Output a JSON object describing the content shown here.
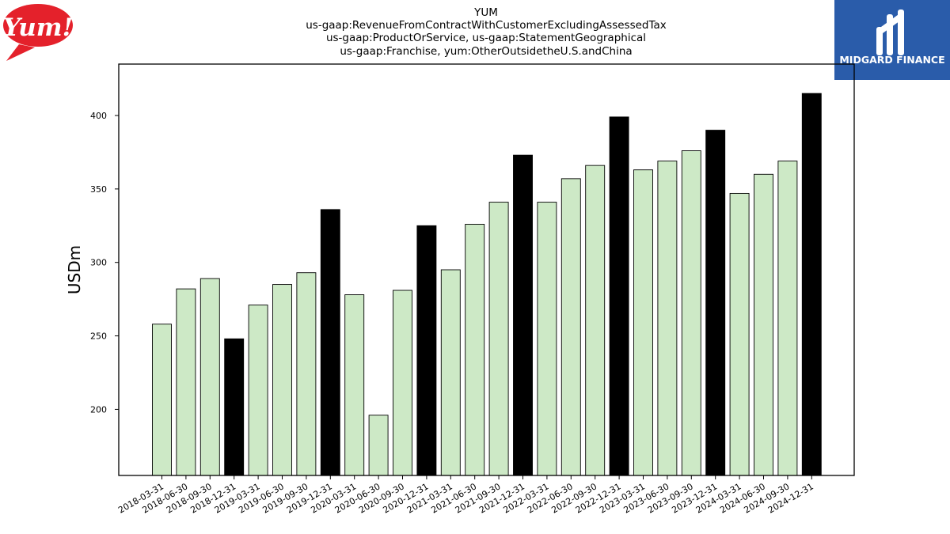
{
  "logos": {
    "yum_text": "Yum!",
    "yum_color": "#e4212b",
    "midgard_text": "MIDGARD FINANCE",
    "midgard_color": "#2a5caa"
  },
  "chart_data": {
    "type": "bar",
    "title_lines": [
      "YUM",
      "us-gaap:RevenueFromContractWithCustomerExcludingAssessedTax",
      "us-gaap:ProductOrService, us-gaap:StatementGeographical",
      "us-gaap:Franchise, yum:OtherOutsidetheU.S.andChina"
    ],
    "xlabel": "",
    "ylabel": "USDm",
    "ylim": [
      155,
      435
    ],
    "yticks": [
      200,
      250,
      300,
      350,
      400
    ],
    "grid": false,
    "colors": {
      "quarter": "#cde9c6",
      "year_end": "#000000",
      "edge": "#000000"
    },
    "categories": [
      "2018-03-31",
      "2018-06-30",
      "2018-09-30",
      "2018-12-31",
      "2019-03-31",
      "2019-06-30",
      "2019-09-30",
      "2019-12-31",
      "2020-03-31",
      "2020-06-30",
      "2020-09-30",
      "2020-12-31",
      "2021-03-31",
      "2021-06-30",
      "2021-09-30",
      "2021-12-31",
      "2022-03-31",
      "2022-06-30",
      "2022-09-30",
      "2022-12-31",
      "2023-03-31",
      "2023-06-30",
      "2023-09-30",
      "2023-12-31",
      "2024-03-31",
      "2024-06-30",
      "2024-09-30",
      "2024-12-31"
    ],
    "values": [
      258,
      282,
      289,
      248,
      271,
      285,
      293,
      336,
      278,
      196,
      281,
      325,
      295,
      326,
      341,
      373,
      341,
      357,
      366,
      399,
      363,
      369,
      376,
      390,
      347,
      360,
      369,
      415
    ]
  }
}
